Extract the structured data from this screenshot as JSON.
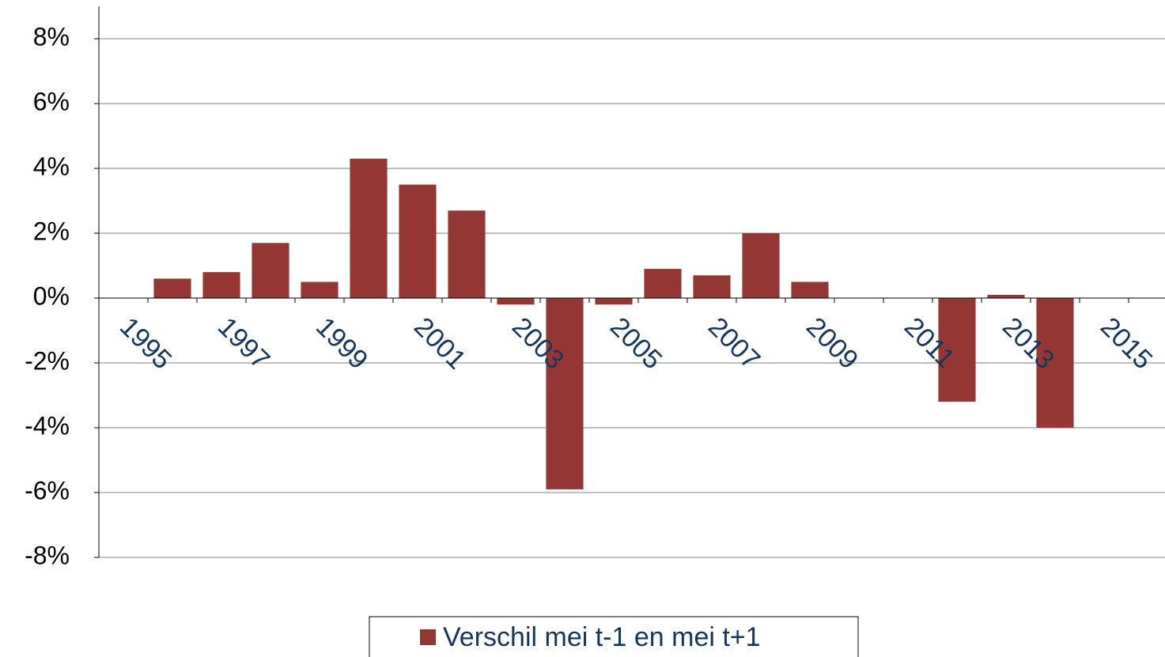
{
  "chart_data": {
    "type": "bar",
    "categories": [
      "1995",
      null,
      "1997",
      null,
      "1999",
      null,
      "2001",
      null,
      "2003",
      null,
      "2005",
      null,
      "2007",
      null,
      "2009",
      null,
      "2011",
      null,
      "2013",
      null,
      "2015",
      null
    ],
    "series": [
      {
        "name": "Verschil mei t-1 en mei t+1",
        "color": "#943634",
        "values": [
          null,
          0.6,
          0.8,
          1.7,
          0.5,
          4.3,
          3.5,
          2.7,
          -0.2,
          -5.9,
          -0.2,
          0.9,
          0.7,
          2.0,
          0.5,
          null,
          null,
          -3.2,
          0.1,
          -4.0,
          null,
          null
        ]
      }
    ],
    "ylim": [
      -8,
      8
    ],
    "yticks": [
      {
        "value": -8,
        "label": "-8%"
      },
      {
        "value": -6,
        "label": "-6%"
      },
      {
        "value": -4,
        "label": "-4%"
      },
      {
        "value": -2,
        "label": "-2%"
      },
      {
        "value": 0,
        "label": "0%"
      },
      {
        "value": 2,
        "label": "2%"
      },
      {
        "value": 4,
        "label": "4%"
      },
      {
        "value": 6,
        "label": "6%"
      },
      {
        "value": 8,
        "label": "8%"
      }
    ],
    "grid": true,
    "legend": "bottom"
  }
}
